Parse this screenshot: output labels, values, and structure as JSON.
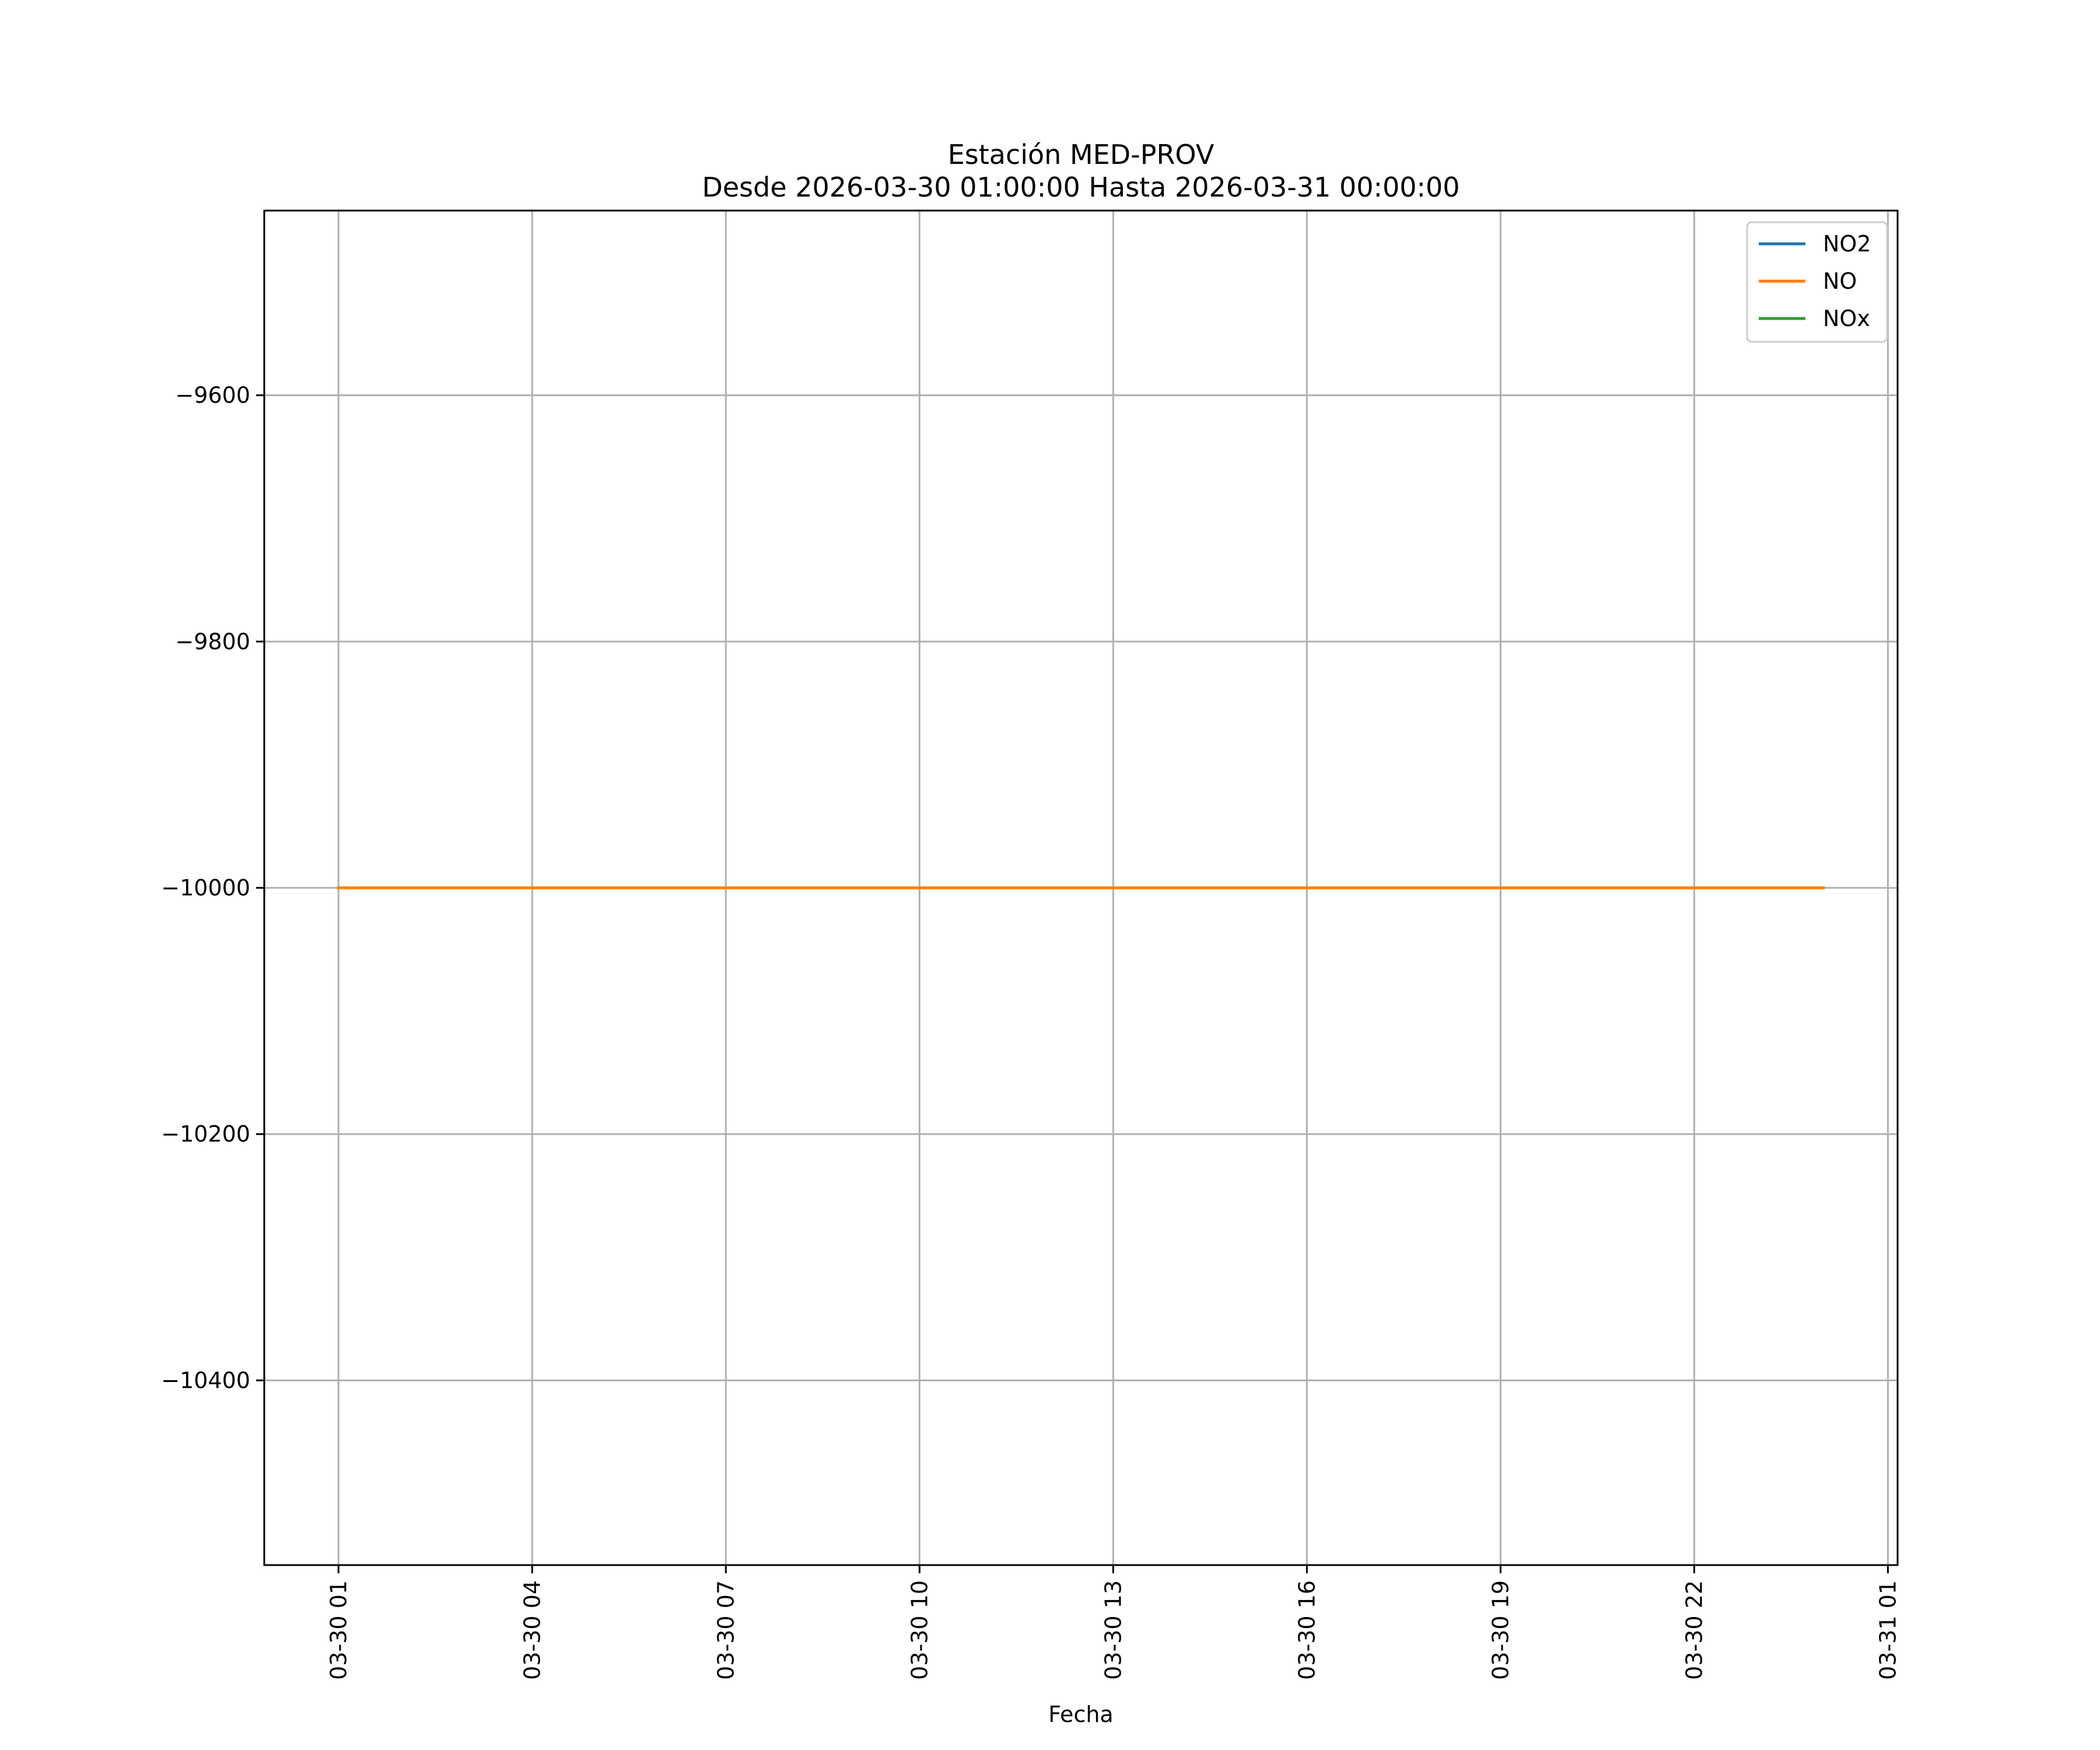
{
  "chart_data": {
    "type": "line",
    "title": "Estación MED-PROV",
    "subtitle": "Desde 2026-03-30 01:00:00 Hasta 2026-03-31 00:00:00",
    "xlabel": "Fecha",
    "ylabel": "",
    "x": [
      "2026-03-30 01:00",
      "2026-03-30 02:00",
      "2026-03-30 03:00",
      "2026-03-30 04:00",
      "2026-03-30 05:00",
      "2026-03-30 06:00",
      "2026-03-30 07:00",
      "2026-03-30 08:00",
      "2026-03-30 09:00",
      "2026-03-30 10:00",
      "2026-03-30 11:00",
      "2026-03-30 12:00",
      "2026-03-30 13:00",
      "2026-03-30 14:00",
      "2026-03-30 15:00",
      "2026-03-30 16:00",
      "2026-03-30 17:00",
      "2026-03-30 18:00",
      "2026-03-30 19:00",
      "2026-03-30 20:00",
      "2026-03-30 21:00",
      "2026-03-30 22:00",
      "2026-03-30 23:00",
      "2026-03-31 00:00"
    ],
    "series": [
      {
        "name": "NO2",
        "color": "#1f77b4",
        "values": [
          -10000,
          -10000,
          -10000,
          -10000,
          -10000,
          -10000,
          -10000,
          -10000,
          -10000,
          -10000,
          -10000,
          -10000,
          -10000,
          -10000,
          -10000,
          -10000,
          -10000,
          -10000,
          -10000,
          -10000,
          -10000,
          -10000,
          -10000,
          -10000
        ]
      },
      {
        "name": "NO",
        "color": "#ff7f0e",
        "values": [
          -10000,
          -10000,
          -10000,
          -10000,
          -10000,
          -10000,
          -10000,
          -10000,
          -10000,
          -10000,
          -10000,
          -10000,
          -10000,
          -10000,
          -10000,
          -10000,
          -10000,
          -10000,
          -10000,
          -10000,
          -10000,
          -10000,
          -10000,
          -10000
        ]
      },
      {
        "name": "NOx",
        "color": "#2ca02c",
        "values": [
          -10000,
          -10000,
          -10000,
          -10000,
          -10000,
          -10000,
          -10000,
          -10000,
          -10000,
          -10000,
          -10000,
          -10000,
          -10000,
          -10000,
          -10000,
          -10000,
          -10000,
          -10000,
          -10000,
          -10000,
          -10000,
          -10000,
          -10000,
          -10000
        ]
      }
    ],
    "draw_order": [
      "NO2",
      "NOx",
      "NO"
    ],
    "xlim": [
      "2026-03-29 23:51",
      "2026-03-31 01:09"
    ],
    "ylim": [
      -10550,
      -9450
    ],
    "xticks": [
      {
        "value": "2026-03-30 01:00",
        "label": "03-30 01"
      },
      {
        "value": "2026-03-30 04:00",
        "label": "03-30 04"
      },
      {
        "value": "2026-03-30 07:00",
        "label": "03-30 07"
      },
      {
        "value": "2026-03-30 10:00",
        "label": "03-30 10"
      },
      {
        "value": "2026-03-30 13:00",
        "label": "03-30 13"
      },
      {
        "value": "2026-03-30 16:00",
        "label": "03-30 16"
      },
      {
        "value": "2026-03-30 19:00",
        "label": "03-30 19"
      },
      {
        "value": "2026-03-30 22:00",
        "label": "03-30 22"
      },
      {
        "value": "2026-03-31 01:00",
        "label": "03-31 01"
      }
    ],
    "yticks": [
      {
        "value": -9600,
        "label": "−9600"
      },
      {
        "value": -9800,
        "label": "−9800"
      },
      {
        "value": -10000,
        "label": "−10000"
      },
      {
        "value": -10200,
        "label": "−10200"
      },
      {
        "value": -10400,
        "label": "−10400"
      }
    ],
    "grid": true,
    "legend_position": "top-right",
    "grid_color": "#b0b0b0"
  }
}
